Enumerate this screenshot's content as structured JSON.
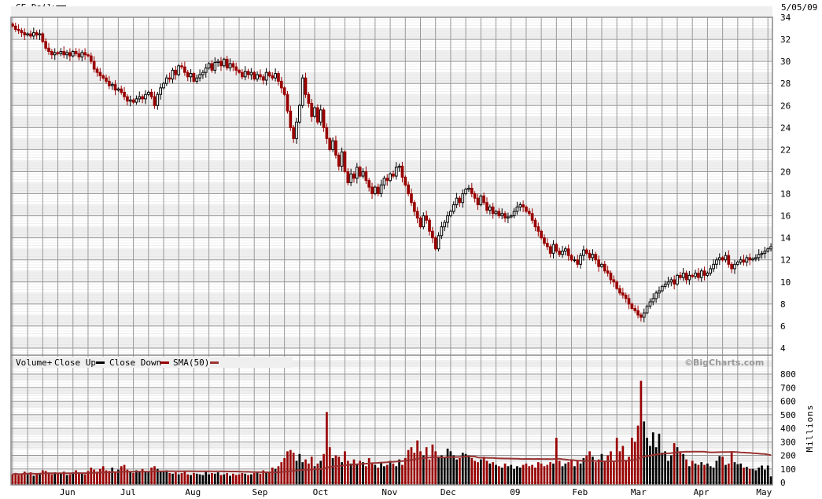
{
  "header": {
    "title": "GE Daily",
    "date": "5/05/09"
  },
  "legend": {
    "volume": "Volume+",
    "close_up": "Close Up",
    "close_down": "Close Down",
    "sma": "SMA(50)"
  },
  "watermark": "©BigCharts.com",
  "colors": {
    "up": "#000000",
    "down": "#990000",
    "sma": "#993333",
    "grid_major": "#999999",
    "grid_minor": "#d0d0d0",
    "band": "#efefef"
  },
  "chart_data": [
    {
      "type": "candlestick",
      "title": "GE Daily",
      "date_range": [
        "2008-05-06",
        "2009-05-05"
      ],
      "ylim": [
        4,
        34
      ],
      "y_ticks": [
        4,
        6,
        8,
        10,
        12,
        14,
        16,
        18,
        20,
        22,
        24,
        26,
        28,
        30,
        32,
        34
      ],
      "x_ticks": [
        {
          "label": "Jun",
          "date": "2008-06-02"
        },
        {
          "label": "Jul",
          "date": "2008-07-01"
        },
        {
          "label": "Aug",
          "date": "2008-08-01"
        },
        {
          "label": "Sep",
          "date": "2008-09-02"
        },
        {
          "label": "Oct",
          "date": "2008-10-01"
        },
        {
          "label": "Nov",
          "date": "2008-11-03"
        },
        {
          "label": "Dec",
          "date": "2008-12-01"
        },
        {
          "label": "09",
          "date": "2009-01-02"
        },
        {
          "label": "Feb",
          "date": "2009-02-02"
        },
        {
          "label": "Mar",
          "date": "2009-03-02"
        },
        {
          "label": "Apr",
          "date": "2009-04-01"
        },
        {
          "label": "May",
          "date": "2009-05-01"
        }
      ],
      "grid": true,
      "close": [
        33.2,
        32.9,
        32.8,
        32.6,
        32.4,
        32.5,
        32.3,
        32.6,
        32.4,
        32.5,
        31.8,
        31.2,
        30.9,
        30.6,
        30.8,
        30.7,
        30.9,
        30.6,
        30.8,
        30.5,
        30.9,
        30.7,
        30.4,
        30.8,
        30.6,
        30.5,
        30.0,
        29.3,
        29.0,
        28.7,
        28.5,
        28.2,
        27.8,
        27.9,
        27.4,
        27.5,
        27.2,
        26.8,
        26.4,
        26.5,
        26.3,
        26.6,
        26.8,
        26.6,
        27.0,
        27.2,
        26.8,
        26.0,
        27.0,
        27.6,
        28.0,
        28.5,
        28.4,
        29.2,
        28.8,
        29.6,
        29.5,
        29.0,
        28.6,
        28.9,
        28.2,
        28.5,
        28.8,
        29.0,
        29.4,
        29.8,
        29.2,
        29.9,
        30.0,
        29.6,
        30.2,
        29.4,
        29.8,
        29.5,
        29.2,
        29.0,
        28.6,
        29.1,
        28.8,
        29.0,
        28.4,
        28.8,
        28.6,
        28.3,
        29.0,
        28.7,
        28.5,
        28.9,
        28.2,
        27.6,
        27.0,
        25.5,
        24.0,
        23.0,
        24.5,
        26.0,
        28.5,
        27.0,
        26.2,
        25.0,
        25.8,
        24.5,
        25.6,
        24.0,
        23.0,
        22.0,
        22.8,
        21.5,
        20.5,
        21.8,
        20.0,
        19.0,
        19.8,
        19.4,
        20.4,
        19.6,
        20.0,
        19.2,
        18.6,
        18.0,
        18.6,
        18.0,
        18.8,
        19.4,
        19.2,
        19.8,
        19.6,
        20.4,
        20.5,
        19.5,
        18.8,
        18.0,
        17.2,
        16.4,
        15.8,
        15.0,
        16.0,
        15.6,
        14.6,
        14.0,
        13.0,
        14.2,
        15.0,
        15.4,
        16.0,
        16.4,
        17.0,
        17.6,
        17.2,
        18.0,
        18.4,
        18.5,
        18.0,
        17.6,
        17.0,
        17.8,
        17.2,
        16.5,
        16.8,
        16.2,
        16.4,
        16.0,
        16.2,
        15.8,
        15.9,
        16.0,
        16.4,
        16.8,
        17.0,
        16.8,
        16.4,
        16.2,
        15.6,
        15.0,
        14.6,
        14.0,
        13.5,
        13.2,
        12.6,
        13.4,
        12.8,
        12.5,
        12.8,
        13.0,
        12.4,
        12.0,
        12.0,
        11.6,
        12.4,
        12.9,
        12.6,
        12.2,
        12.5,
        12.0,
        11.4,
        11.6,
        11.0,
        10.8,
        10.2,
        10.0,
        9.4,
        9.0,
        8.8,
        8.5,
        8.0,
        7.6,
        7.4,
        7.0,
        6.8,
        7.2,
        7.8,
        8.2,
        8.5,
        9.0,
        9.2,
        9.6,
        9.8,
        10.0,
        10.2,
        9.8,
        10.6,
        10.4,
        10.8,
        10.2,
        10.6,
        10.5,
        10.8,
        10.4,
        11.0,
        10.6,
        10.8,
        11.2,
        11.6,
        12.0,
        12.2,
        12.0,
        12.4,
        11.6,
        11.2,
        11.6,
        11.8,
        12.0,
        11.8,
        12.2,
        12.0,
        12.1,
        12.2,
        12.5,
        12.6,
        12.8,
        13.0,
        13.2
      ]
    },
    {
      "type": "bar",
      "ylabel": "Millions",
      "ylim": [
        0,
        800
      ],
      "y_ticks": [
        0,
        100,
        200,
        300,
        400,
        500,
        600,
        700,
        800
      ],
      "sma_period": 50,
      "volume": [
        60,
        70,
        55,
        65,
        80,
        60,
        75,
        50,
        65,
        70,
        90,
        85,
        70,
        60,
        75,
        65,
        70,
        80,
        55,
        60,
        75,
        90,
        70,
        65,
        60,
        85,
        110,
        95,
        80,
        100,
        120,
        90,
        85,
        110,
        75,
        95,
        120,
        130,
        95,
        80,
        70,
        90,
        85,
        100,
        80,
        75,
        110,
        120,
        100,
        85,
        80,
        90,
        70,
        65,
        75,
        60,
        70,
        85,
        60,
        55,
        70,
        65,
        60,
        55,
        80,
        60,
        70,
        65,
        75,
        55,
        60,
        70,
        50,
        65,
        55,
        60,
        70,
        65,
        55,
        60,
        70,
        75,
        65,
        90,
        70,
        80,
        110,
        100,
        120,
        150,
        180,
        230,
        240,
        220,
        160,
        210,
        150,
        170,
        140,
        190,
        120,
        140,
        160,
        210,
        520,
        260,
        180,
        200,
        190,
        150,
        230,
        160,
        140,
        170,
        130,
        160,
        150,
        120,
        180,
        140,
        130,
        110,
        150,
        120,
        130,
        160,
        140,
        120,
        170,
        130,
        180,
        240,
        260,
        220,
        310,
        230,
        200,
        260,
        170,
        280,
        230,
        190,
        200,
        180,
        250,
        230,
        200,
        170,
        180,
        220,
        210,
        200,
        180,
        160,
        150,
        170,
        190,
        160,
        140,
        150,
        130,
        120,
        110,
        140,
        120,
        130,
        100,
        120,
        110,
        130,
        140,
        120,
        130,
        110,
        150,
        140,
        120,
        130,
        150,
        140,
        330,
        160,
        120,
        140,
        150,
        170,
        120,
        160,
        140,
        180,
        200,
        230,
        190,
        150,
        170,
        210,
        160,
        200,
        230,
        150,
        330,
        230,
        270,
        160,
        190,
        330,
        300,
        420,
        750,
        450,
        330,
        270,
        370,
        260,
        360,
        220,
        230,
        160,
        200,
        290,
        260,
        220,
        210,
        170,
        120,
        160,
        140,
        130,
        150,
        130,
        140,
        120,
        110,
        160,
        195,
        190,
        130,
        140,
        230,
        150,
        135,
        140,
        110,
        115,
        100,
        100,
        90,
        110,
        125,
        95,
        125,
        45
      ]
    }
  ]
}
